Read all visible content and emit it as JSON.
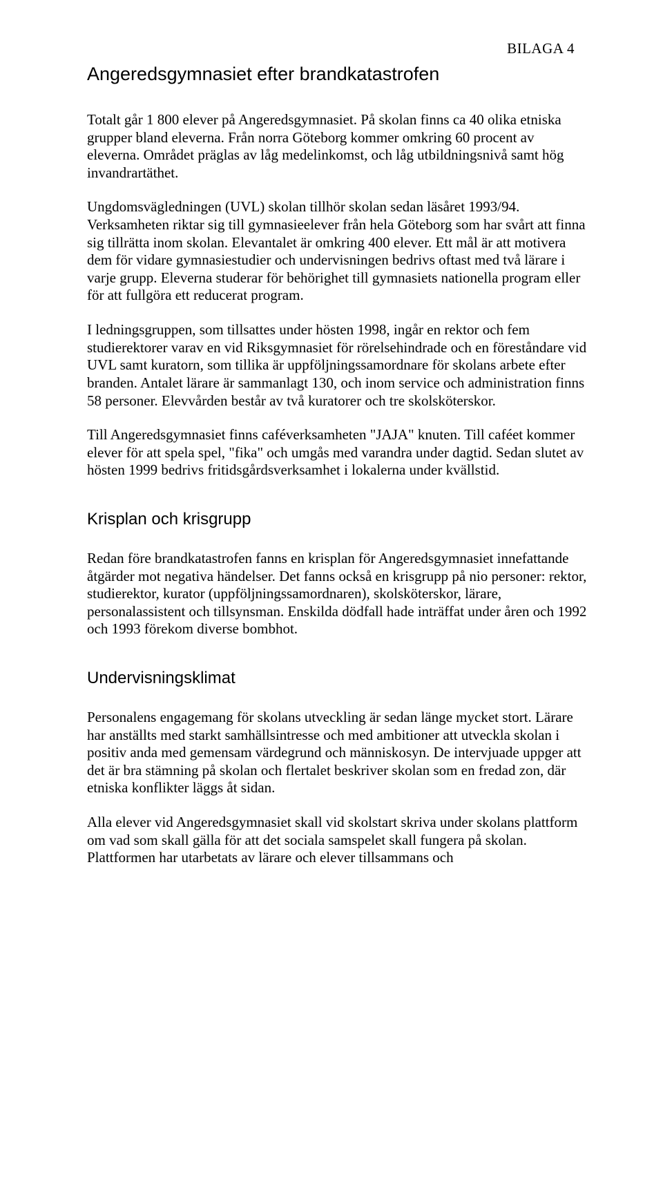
{
  "header": {
    "attachment_label": "BILAGA 4"
  },
  "title": "Angeredsgymnasiet efter brandkatastrofen",
  "paragraphs": {
    "p1": "Totalt går 1 800 elever på Angeredsgymnasiet. På skolan finns ca 40 olika etniska grupper bland eleverna. Från norra Göteborg kommer omkring 60 procent av eleverna. Området präglas av låg medelinkomst, och låg utbildningsnivå samt hög invandrartäthet.",
    "p2": "Ungdomsvägledningen (UVL) skolan tillhör skolan sedan läsåret 1993/94. Verksamheten riktar sig till gymnasieelever från hela Göteborg som har svårt att finna sig tillrätta inom skolan. Elevantalet är omkring 400 elever. Ett mål är att motivera dem för vidare gymnasiestudier och undervisningen bedrivs oftast med två lärare i varje grupp. Eleverna studerar för behörighet till gymnasiets nationella program eller för att fullgöra ett reducerat program.",
    "p3": "I ledningsgruppen, som tillsattes under hösten 1998, ingår en rektor och fem studierektorer varav en vid Riksgymnasiet för rörelsehindrade och en föreståndare vid UVL samt kuratorn, som tillika är uppföljningssamordnare för skolans arbete efter branden. Antalet lärare är sammanlagt 130, och inom service och administration finns 58 personer. Elevvården består av två kuratorer och tre skolsköterskor.",
    "p4": "Till Angeredsgymnasiet finns caféverksamheten \"JAJA\" knuten. Till caféet kommer elever för att spela spel, \"fika\" och umgås med varandra under dagtid. Sedan slutet av hösten 1999 bedrivs fritidsgårdsverksamhet i lokalerna under kvällstid."
  },
  "sections": {
    "s1": {
      "title": "Krisplan och krisgrupp",
      "p1": "Redan före brandkatastrofen fanns en krisplan för Angeredsgymnasiet innefattande åtgärder mot negativa händelser. Det fanns också en krisgrupp på nio personer: rektor, studierektor, kurator (uppföljningssamordnaren), skolsköterskor, lärare, personalassistent och tillsynsman. Enskilda dödfall hade inträffat under åren och 1992 och 1993 förekom diverse bombhot."
    },
    "s2": {
      "title": "Undervisningsklimat",
      "p1": "Personalens engagemang för skolans utveckling är sedan länge mycket stort. Lärare har anställts med starkt samhällsintresse och med ambitioner att utveckla skolan i positiv anda med gemensam värdegrund och människosyn. De intervjuade uppger att det är bra stämning på skolan och flertalet beskriver skolan som en fredad zon, där etniska konflikter läggs åt sidan.",
      "p2": "Alla elever vid Angeredsgymnasiet skall vid skolstart skriva under skolans plattform om vad som skall gälla för att det sociala samspelet skall fungera på skolan. Plattformen har utarbetats av lärare och elever tillsammans och"
    }
  }
}
